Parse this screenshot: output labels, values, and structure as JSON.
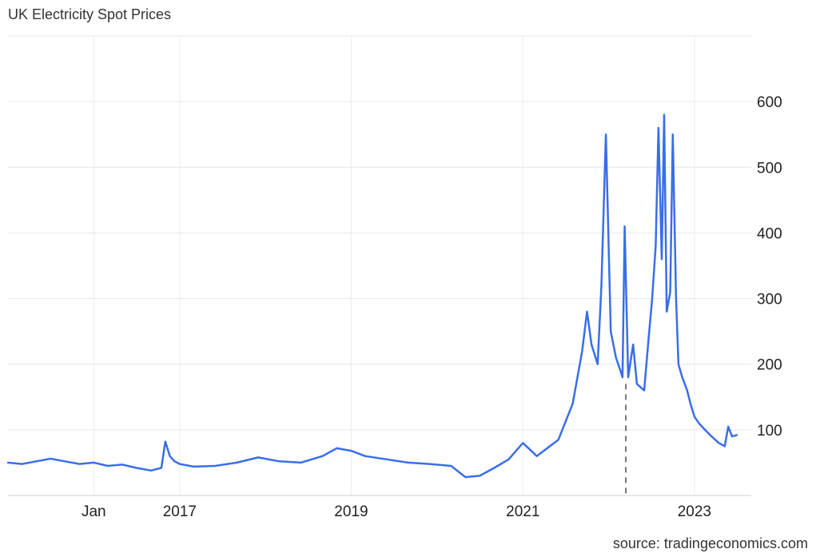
{
  "chart_data": {
    "type": "line",
    "title": "UK Electricity Spot Prices",
    "source": "source: tradingeconomics.com",
    "xlabel": "",
    "ylabel": "",
    "x_axis_type": "date",
    "xlim": [
      "2015-01-01",
      "2023-08-31"
    ],
    "ylim": [
      0,
      700
    ],
    "y_ticks": [
      100,
      200,
      300,
      400,
      500,
      600
    ],
    "x_ticks": [
      {
        "date": "2016-01-01",
        "label": "Jan"
      },
      {
        "date": "2017-01-01",
        "label": "2017"
      },
      {
        "date": "2019-01-01",
        "label": "2019"
      },
      {
        "date": "2021-01-01",
        "label": "2021"
      },
      {
        "date": "2023-01-01",
        "label": "2023"
      }
    ],
    "grid": true,
    "y_axis_position": "right",
    "marker_date": "2022-03-15",
    "line_color": "#3a6ee8",
    "series": [
      {
        "x": [
          "2015-01-01",
          "2015-03-01",
          "2015-05-01",
          "2015-07-01",
          "2015-09-01",
          "2015-11-01",
          "2016-01-01",
          "2016-03-01",
          "2016-05-01",
          "2016-07-01",
          "2016-09-01",
          "2016-10-15",
          "2016-11-01",
          "2016-11-20",
          "2016-12-10",
          "2017-01-01",
          "2017-03-01",
          "2017-06-01",
          "2017-09-01",
          "2017-12-01",
          "2018-03-01",
          "2018-06-01",
          "2018-09-01",
          "2018-11-01",
          "2019-01-01",
          "2019-03-01",
          "2019-06-01",
          "2019-09-01",
          "2019-12-01",
          "2020-03-01",
          "2020-05-01",
          "2020-07-01",
          "2020-09-01",
          "2020-11-01",
          "2021-01-01",
          "2021-03-01",
          "2021-06-01",
          "2021-08-01",
          "2021-09-10",
          "2021-10-01",
          "2021-10-20",
          "2021-11-15",
          "2021-12-01",
          "2021-12-20",
          "2022-01-10",
          "2022-02-01",
          "2022-02-20",
          "2022-03-01",
          "2022-03-10",
          "2022-03-25",
          "2022-04-15",
          "2022-05-01",
          "2022-06-01",
          "2022-06-20",
          "2022-07-05",
          "2022-07-20",
          "2022-08-01",
          "2022-08-15",
          "2022-08-25",
          "2022-09-05",
          "2022-09-20",
          "2022-10-01",
          "2022-10-15",
          "2022-10-25",
          "2022-11-10",
          "2022-12-01",
          "2022-12-15",
          "2023-01-01",
          "2023-01-20",
          "2023-02-15",
          "2023-03-15",
          "2023-04-15",
          "2023-05-10",
          "2023-05-25",
          "2023-06-10",
          "2023-06-30"
        ],
        "values": [
          50,
          48,
          52,
          56,
          52,
          48,
          50,
          45,
          47,
          42,
          38,
          42,
          82,
          60,
          52,
          48,
          44,
          45,
          50,
          58,
          52,
          50,
          60,
          72,
          68,
          60,
          55,
          50,
          48,
          45,
          28,
          30,
          42,
          55,
          80,
          60,
          85,
          140,
          220,
          280,
          230,
          200,
          320,
          550,
          250,
          210,
          190,
          180,
          410,
          180,
          230,
          170,
          160,
          240,
          300,
          380,
          560,
          360,
          580,
          280,
          310,
          550,
          300,
          200,
          180,
          160,
          140,
          120,
          110,
          100,
          90,
          80,
          75,
          105,
          90,
          92
        ]
      }
    ]
  }
}
